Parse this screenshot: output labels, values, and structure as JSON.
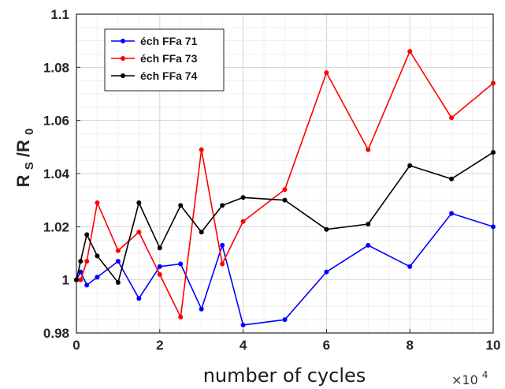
{
  "chart_data": {
    "type": "line",
    "title": "",
    "xlabel": "number of cycles",
    "ylabel": "R_S/R_0",
    "ylabel_main": "R",
    "ylabel_sub1": "S",
    "ylabel_slash": "/R",
    "ylabel_sub2": "0",
    "x_multiplier_base": "×10",
    "x_multiplier_exp": "4",
    "xlim": [
      0,
      10
    ],
    "ylim": [
      0.98,
      1.1
    ],
    "x_ticks": [
      0,
      2,
      4,
      6,
      8,
      10
    ],
    "y_ticks": [
      0.98,
      1,
      1.02,
      1.04,
      1.06,
      1.08,
      1.1
    ],
    "x_tick_labels": [
      "0",
      "2",
      "4",
      "6",
      "8",
      "10"
    ],
    "y_tick_labels": [
      "0.98",
      "1",
      "1.02",
      "1.04",
      "1.06",
      "1.08",
      "1.1"
    ],
    "grid": true,
    "legend_position": "top-left",
    "series": [
      {
        "name": "éch FFa 71",
        "color": "#0000ff",
        "x": [
          0,
          0.1,
          0.25,
          0.5,
          1,
          1.5,
          2,
          2.5,
          3,
          3.5,
          4,
          5,
          6,
          7,
          8,
          9,
          10
        ],
        "y": [
          1.0,
          1.003,
          0.998,
          1.001,
          1.007,
          0.993,
          1.005,
          1.006,
          0.989,
          1.013,
          0.983,
          0.985,
          1.003,
          1.013,
          1.005,
          1.025,
          1.02
        ]
      },
      {
        "name": "éch FFa 73",
        "color": "#ff0000",
        "x": [
          0,
          0.1,
          0.25,
          0.5,
          1,
          1.5,
          2,
          2.5,
          3,
          3.5,
          4,
          5,
          6,
          7,
          8,
          9,
          10
        ],
        "y": [
          1.0,
          1.0,
          1.007,
          1.029,
          1.011,
          1.018,
          1.002,
          0.986,
          1.049,
          1.006,
          1.022,
          1.034,
          1.078,
          1.049,
          1.086,
          1.061,
          1.074
        ]
      },
      {
        "name": "éch FFa 74",
        "color": "#000000",
        "x": [
          0,
          0.1,
          0.25,
          0.5,
          1,
          1.5,
          2,
          2.5,
          3,
          3.5,
          4,
          5,
          6,
          7,
          8,
          9,
          10
        ],
        "y": [
          1.0,
          1.007,
          1.017,
          1.009,
          0.999,
          1.029,
          1.012,
          1.028,
          1.018,
          1.028,
          1.031,
          1.03,
          1.019,
          1.021,
          1.043,
          1.038,
          1.048
        ]
      }
    ]
  }
}
